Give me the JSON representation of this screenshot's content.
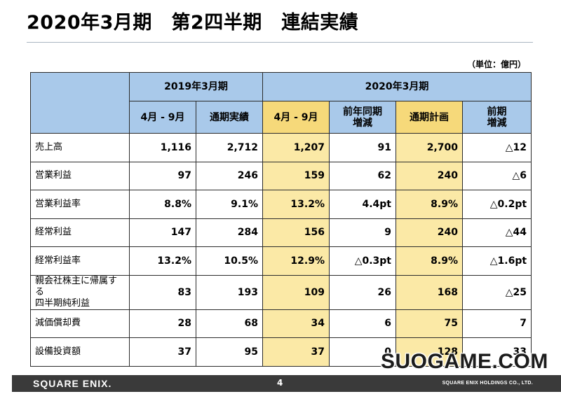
{
  "title": "2020年3月期　第2四半期　連結実績",
  "unit": "（単位：億円）",
  "header": {
    "fy2019": "2019年3月期",
    "fy2020": "2020年3月期",
    "cols": [
      "4月 - 9月",
      "通期実績",
      "4月 - 9月",
      "前年同期\n増減",
      "通期計画",
      "前期\n増減"
    ]
  },
  "rows": [
    {
      "label": "売上高",
      "values": [
        "1,116",
        "2,712",
        "1,207",
        "91",
        "2,700",
        "△12"
      ]
    },
    {
      "label": "営業利益",
      "values": [
        "97",
        "246",
        "159",
        "62",
        "240",
        "△6"
      ]
    },
    {
      "label": "営業利益率",
      "values": [
        "8.8%",
        "9.1%",
        "13.2%",
        "4.4pt",
        "8.9%",
        "△0.2pt"
      ]
    },
    {
      "label": "経常利益",
      "values": [
        "147",
        "284",
        "156",
        "9",
        "240",
        "△44"
      ]
    },
    {
      "label": "経常利益率",
      "values": [
        "13.2%",
        "10.5%",
        "12.9%",
        "△0.3pt",
        "8.9%",
        "△1.6pt"
      ]
    },
    {
      "label": "親会社株主に帰属する\n四半期純利益",
      "values": [
        "83",
        "193",
        "109",
        "26",
        "168",
        "△25"
      ]
    },
    {
      "label": "減価償却費",
      "values": [
        "28",
        "68",
        "34",
        "6",
        "75",
        "7"
      ]
    },
    {
      "label": "設備投資額",
      "values": [
        "37",
        "95",
        "37",
        "0",
        "128",
        "33"
      ]
    }
  ],
  "footer": {
    "logo": "SQUARE ENIX.",
    "page": "4",
    "holdings": "SQUARE ENIX HOLDINGS CO., LTD."
  },
  "watermark": "SUOGAME.COM"
}
